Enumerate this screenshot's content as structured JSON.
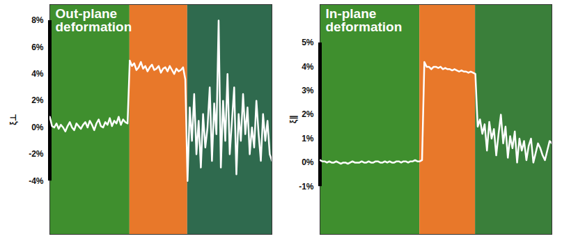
{
  "chart_data": [
    {
      "type": "line",
      "title": "Out-plane deformation",
      "y_label": "ξ⊥",
      "color": "#ffffff",
      "tick_labels": "y",
      "xlim": [
        0,
        100
      ],
      "ylim": [
        -8,
        9.2
      ],
      "yticks": [
        {
          "value": -4,
          "label": "-4%"
        },
        {
          "value": -2,
          "label": "-2%"
        },
        {
          "value": 0,
          "label": "0%"
        },
        {
          "value": 2,
          "label": "2%"
        },
        {
          "value": 4,
          "label": "4%"
        },
        {
          "value": 6,
          "label": "6%"
        },
        {
          "value": 8,
          "label": "8%"
        }
      ],
      "bands": [
        {
          "x": [
            0,
            36
          ],
          "color": "#3f8f2e"
        },
        {
          "x": [
            36,
            62
          ],
          "color": "#e8782a"
        },
        {
          "x": [
            62,
            100
          ],
          "color": "#2f6a4e"
        }
      ],
      "x": [
        0,
        1,
        2,
        3,
        4,
        5,
        6,
        7,
        8,
        9,
        10,
        11,
        12,
        13,
        14,
        15,
        16,
        17,
        18,
        19,
        20,
        21,
        22,
        23,
        24,
        25,
        26,
        27,
        28,
        29,
        30,
        31,
        32,
        33,
        34,
        35,
        36,
        37,
        38,
        39,
        40,
        41,
        42,
        43,
        44,
        45,
        46,
        47,
        48,
        49,
        50,
        51,
        52,
        53,
        54,
        55,
        56,
        57,
        58,
        59,
        60,
        61,
        62,
        63,
        64,
        65,
        66,
        67,
        68,
        69,
        70,
        71,
        72,
        73,
        74,
        75,
        76,
        77,
        78,
        79,
        80,
        81,
        82,
        83,
        84,
        85,
        86,
        87,
        88,
        89,
        90,
        91,
        92,
        93,
        94,
        95,
        96,
        97,
        98,
        99,
        100
      ],
      "values": [
        0.8,
        0.1,
        0.0,
        0.3,
        -0.1,
        0.2,
        0.0,
        -0.3,
        0.1,
        0.4,
        0.0,
        -0.2,
        0.3,
        0.1,
        -0.1,
        0.2,
        0.4,
        0.0,
        0.5,
        0.2,
        -0.2,
        0.3,
        0.6,
        0.1,
        0.0,
        0.4,
        0.2,
        0.7,
        0.1,
        0.5,
        0.3,
        0.8,
        0.2,
        0.6,
        0.4,
        0.3,
        5.0,
        4.6,
        4.8,
        4.3,
        4.5,
        4.9,
        4.4,
        4.6,
        4.2,
        4.5,
        4.7,
        4.3,
        4.4,
        4.6,
        4.1,
        4.4,
        4.5,
        4.2,
        4.6,
        4.3,
        4.0,
        4.4,
        4.2,
        4.3,
        4.5,
        3.6,
        -4.0,
        1.5,
        -1.0,
        2.5,
        -2.0,
        0.5,
        -3.0,
        1.0,
        -1.5,
        0.0,
        3.0,
        -2.5,
        1.8,
        -0.5,
        8.0,
        -3.0,
        2.0,
        -1.0,
        4.0,
        -2.0,
        0.5,
        3.0,
        -3.5,
        1.0,
        -1.0,
        2.5,
        -0.5,
        1.5,
        -2.0,
        0.0,
        -1.5,
        2.0,
        -0.5,
        -2.5,
        1.0,
        -1.0,
        0.5,
        -2.0,
        -2.5
      ]
    },
    {
      "type": "line",
      "title": "In-plane deformation",
      "y_label": "ξ∥",
      "color": "#ffffff",
      "tick_labels": "y",
      "xlim": [
        0,
        100
      ],
      "ylim": [
        -3,
        6.6
      ],
      "yticks": [
        {
          "value": -1,
          "label": "-1%"
        },
        {
          "value": 0,
          "label": "0%"
        },
        {
          "value": 1,
          "label": "1%"
        },
        {
          "value": 2,
          "label": "2%"
        },
        {
          "value": 3,
          "label": "3%"
        },
        {
          "value": 4,
          "label": "4%"
        },
        {
          "value": 5,
          "label": "5%"
        }
      ],
      "bands": [
        {
          "x": [
            0,
            43
          ],
          "color": "#3f8f2e"
        },
        {
          "x": [
            43,
            67
          ],
          "color": "#e8782a"
        },
        {
          "x": [
            67,
            100
          ],
          "color": "#3a7f3a"
        }
      ],
      "x": [
        0,
        1,
        2,
        3,
        4,
        5,
        6,
        7,
        8,
        9,
        10,
        11,
        12,
        13,
        14,
        15,
        16,
        17,
        18,
        19,
        20,
        21,
        22,
        23,
        24,
        25,
        26,
        27,
        28,
        29,
        30,
        31,
        32,
        33,
        34,
        35,
        36,
        37,
        38,
        39,
        40,
        41,
        42,
        43,
        44,
        45,
        46,
        47,
        48,
        49,
        50,
        51,
        52,
        53,
        54,
        55,
        56,
        57,
        58,
        59,
        60,
        61,
        62,
        63,
        64,
        65,
        66,
        67,
        68,
        69,
        70,
        71,
        72,
        73,
        74,
        75,
        76,
        77,
        78,
        79,
        80,
        81,
        82,
        83,
        84,
        85,
        86,
        87,
        88,
        89,
        90,
        91,
        92,
        93,
        94,
        95,
        96,
        97,
        98,
        99,
        100
      ],
      "values": [
        0.1,
        0.05,
        0.05,
        0.0,
        0.05,
        0.0,
        0.0,
        0.05,
        0.0,
        -0.05,
        0.0,
        0.0,
        -0.05,
        0.0,
        0.05,
        0.0,
        0.0,
        0.0,
        0.05,
        0.0,
        0.0,
        0.05,
        0.0,
        0.0,
        0.05,
        0.05,
        0.0,
        0.0,
        0.05,
        0.0,
        0.05,
        0.0,
        0.0,
        0.05,
        0.05,
        0.0,
        0.05,
        0.05,
        0.0,
        0.05,
        0.05,
        0.1,
        0.05,
        0.05,
        0.1,
        4.2,
        4.0,
        4.0,
        3.9,
        4.0,
        4.0,
        3.95,
        4.0,
        3.9,
        3.95,
        3.9,
        3.9,
        3.85,
        3.9,
        3.85,
        3.8,
        3.85,
        3.8,
        3.8,
        3.75,
        3.8,
        3.75,
        3.7,
        1.5,
        1.8,
        1.2,
        1.6,
        0.5,
        1.7,
        1.0,
        1.4,
        0.3,
        1.2,
        2.0,
        0.8,
        1.5,
        0.2,
        1.1,
        0.6,
        1.3,
        0.0,
        1.0,
        0.5,
        0.9,
        0.1,
        0.7,
        1.0,
        0.0,
        0.4,
        0.8,
        0.6,
        0.3,
        0.1,
        0.5,
        0.9,
        0.8
      ]
    }
  ]
}
